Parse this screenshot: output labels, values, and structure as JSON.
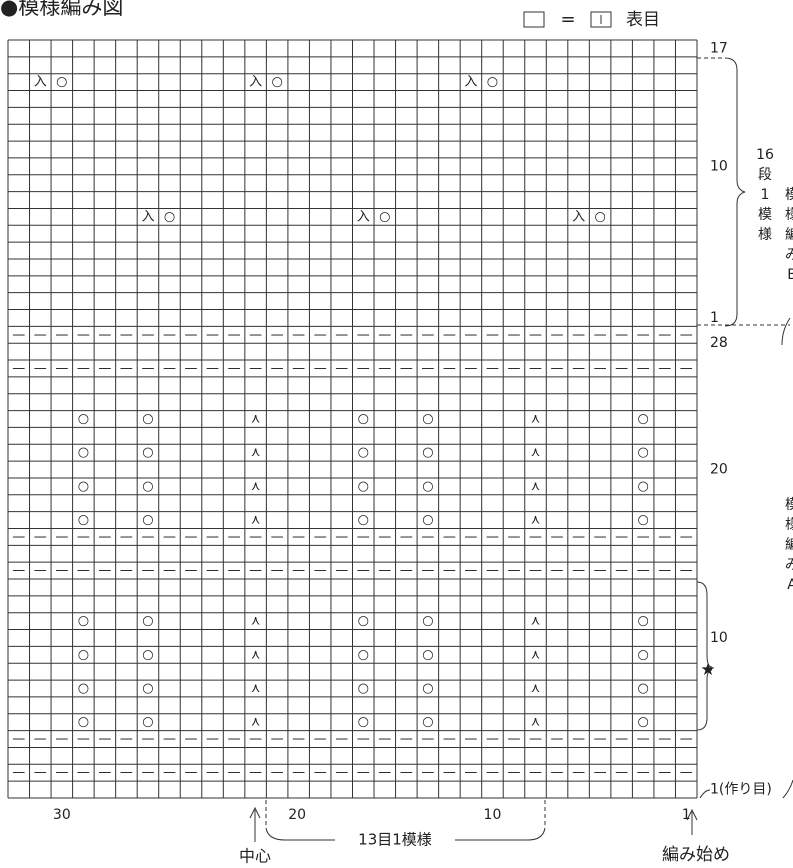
{
  "header": {
    "title": "●模様編み図",
    "legend": {
      "equals": "=",
      "label": "表目"
    }
  },
  "chart": {
    "columns": 32,
    "rows": 45,
    "motifs": [
      {
        "symbols": [
          "入",
          "○"
        ],
        "rows": [
          43
        ],
        "columns": [
          31,
          21,
          11
        ]
      },
      {
        "symbols": [
          "入",
          "○"
        ],
        "rows": [
          35
        ],
        "columns": [
          26,
          16,
          6
        ]
      },
      {
        "symbols": [
          "○"
        ],
        "rows": [
          5,
          7,
          9,
          11,
          17,
          19,
          21,
          23
        ],
        "columns": [
          29,
          26,
          16,
          13,
          3
        ]
      },
      {
        "symbols": [
          "⋏"
        ],
        "rows": [
          5,
          7,
          9,
          11,
          17,
          19,
          21,
          23
        ],
        "columns": [
          21,
          8
        ]
      }
    ],
    "purl": {
      "symbol": "—",
      "rows": [
        2,
        4,
        14,
        16,
        26,
        28
      ]
    }
  },
  "row_labels": [
    "17",
    "10",
    "1",
    "28",
    "20",
    "10",
    "1(作り目)"
  ],
  "column_labels": [
    "30",
    "20",
    "10",
    "1"
  ],
  "repeat_upper": [
    "16",
    "段",
    "1",
    "模",
    "様"
  ],
  "side_b": [
    "模",
    "様",
    "編",
    "み",
    "B"
  ],
  "side_a": [
    "模",
    "様",
    "編",
    "み",
    "A"
  ],
  "star": "★",
  "center": "中心",
  "repeat_lower": "13目1模様",
  "start": "編み始め"
}
